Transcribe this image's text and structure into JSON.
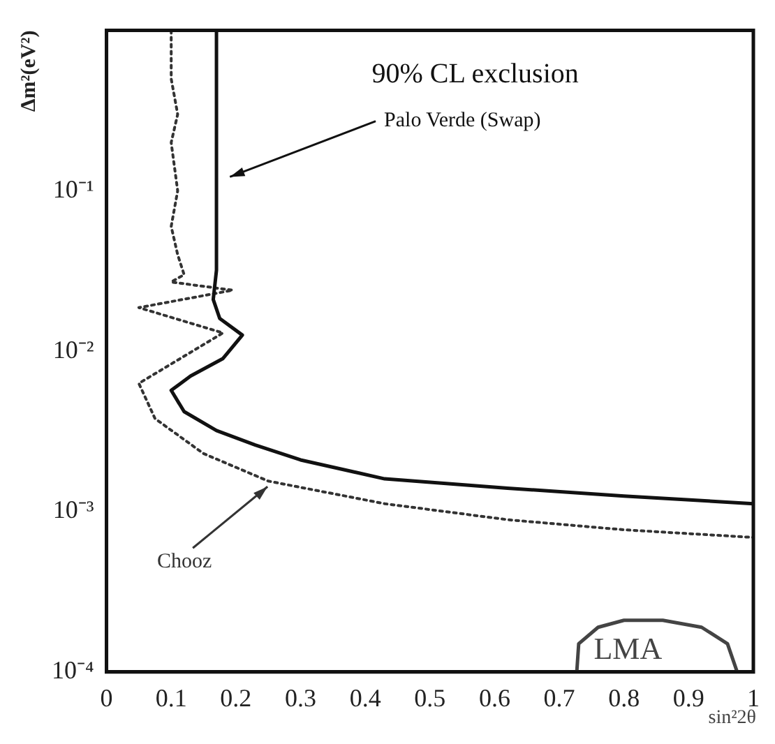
{
  "chart_data": {
    "type": "line",
    "title": "90% CL exclusion",
    "xlabel": "sin²2θ",
    "ylabel": "Δm²(eV²)",
    "xlim": [
      0,
      1
    ],
    "xticks": [
      0,
      0.1,
      0.2,
      0.3,
      0.4,
      0.5,
      0.6,
      0.7,
      0.8,
      0.9,
      1
    ],
    "ylim": [
      0.0001,
      1
    ],
    "yticks": [
      {
        "value": 0.0001,
        "label": "10⁻⁴"
      },
      {
        "value": 0.001,
        "label": "10⁻³"
      },
      {
        "value": 0.01,
        "label": "10⁻²"
      },
      {
        "value": 0.1,
        "label": "10⁻¹"
      }
    ],
    "log": "y",
    "grid": false,
    "legend": false,
    "marker": "none",
    "series": [
      {
        "name": "Palo Verde (Swap)",
        "color": "#111111",
        "line_style": "solid",
        "x": [
          0.17,
          0.17,
          0.165,
          0.175,
          0.21,
          0.18,
          0.13,
          0.1,
          0.12,
          0.17,
          0.23,
          0.3,
          0.43,
          0.62,
          0.8,
          1.0
        ],
        "values": [
          1,
          0.032,
          0.021,
          0.016,
          0.0126,
          0.009,
          0.007,
          0.0057,
          0.0042,
          0.0032,
          0.0026,
          0.0021,
          0.0016,
          0.0014,
          0.00125,
          0.00112
        ]
      },
      {
        "name": "Chooz",
        "color": "#333333",
        "line_style": "dotted",
        "x": [
          0.1,
          0.1,
          0.11,
          0.1,
          0.11,
          0.1,
          0.11,
          0.12,
          0.1,
          0.195,
          0.05,
          0.18,
          0.05,
          0.075,
          0.15,
          0.25,
          0.43,
          0.62,
          0.8,
          1.0
        ],
        "values": [
          1,
          0.5,
          0.3,
          0.2,
          0.1,
          0.06,
          0.04,
          0.03,
          0.027,
          0.024,
          0.0187,
          0.013,
          0.0063,
          0.0038,
          0.0023,
          0.00155,
          0.00112,
          0.00089,
          0.00077,
          0.00069
        ]
      },
      {
        "name": "LMA",
        "color": "#444444",
        "line_style": "solid",
        "x": [
          0.727,
          0.73,
          0.76,
          0.8,
          0.86,
          0.92,
          0.96,
          0.975
        ],
        "values": [
          0.0001,
          0.00015,
          0.00019,
          0.00021,
          0.00021,
          0.00019,
          0.00015,
          0.0001
        ]
      }
    ]
  }
}
